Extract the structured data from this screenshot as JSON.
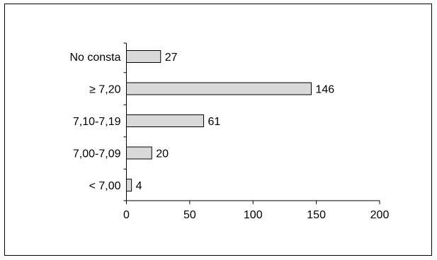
{
  "chart_data": {
    "type": "bar",
    "orientation": "horizontal",
    "categories": [
      "No consta",
      "≥ 7,20",
      "7,10-7,19",
      "7,00-7,09",
      "< 7,00"
    ],
    "values": [
      27,
      146,
      61,
      20,
      4
    ],
    "data_labels": [
      "27",
      "146",
      "61",
      "20",
      "4"
    ],
    "xlim": [
      0,
      200
    ],
    "x_ticks": [
      0,
      50,
      100,
      150,
      200
    ],
    "x_tick_labels": [
      "0",
      "50",
      "100",
      "150",
      "200"
    ],
    "grid": false,
    "legend": "none",
    "colors": {
      "bar_fill": "#d9d9d9",
      "bar_stroke": "#000000",
      "axis": "#000000",
      "text": "#000000",
      "frame": "#000000"
    }
  }
}
